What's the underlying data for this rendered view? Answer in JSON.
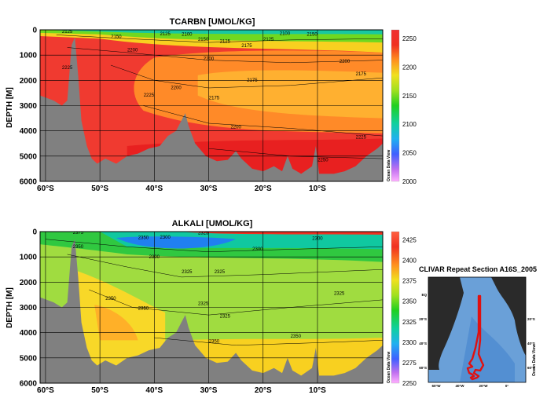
{
  "chart_data": [
    {
      "type": "heatmap",
      "title": "TCARBN [UMOL/KG]",
      "ylabel": "DEPTH [M]",
      "xlabel": "",
      "x_ticks": [
        "60°S",
        "50°S",
        "40°S",
        "30°S",
        "20°S",
        "10°S"
      ],
      "x_tick_values": [
        -60,
        -50,
        -40,
        -30,
        -20,
        -10
      ],
      "xlim": [
        -61,
        2
      ],
      "y_ticks": [
        "0",
        "1000",
        "2000",
        "3000",
        "4000",
        "5000",
        "6000"
      ],
      "y_tick_values": [
        0,
        1000,
        2000,
        3000,
        4000,
        5000,
        6000
      ],
      "ylim": [
        0,
        6000
      ],
      "colorbar_ticks": [
        "2000",
        "2050",
        "2100",
        "2150",
        "2200",
        "2250"
      ],
      "colorbar_values": [
        2000,
        2050,
        2100,
        2150,
        2200,
        2250
      ],
      "colorbar_range": [
        2000,
        2265
      ],
      "colorbar_label": "Ocean Data View",
      "grid": true,
      "contour_labels": [
        {
          "text": "2125",
          "lat": -56,
          "depth": 120
        },
        {
          "text": "2150",
          "lat": -47,
          "depth": 330
        },
        {
          "text": "2200",
          "lat": -44,
          "depth": 850
        },
        {
          "text": "2225",
          "lat": -56,
          "depth": 1550
        },
        {
          "text": "2225",
          "lat": -41,
          "depth": 2650
        },
        {
          "text": "2200",
          "lat": -36,
          "depth": 2350
        },
        {
          "text": "2175",
          "lat": -29,
          "depth": 2750
        },
        {
          "text": "2175",
          "lat": -22,
          "depth": 2050
        },
        {
          "text": "2200",
          "lat": -30,
          "depth": 1200
        },
        {
          "text": "2125",
          "lat": -38,
          "depth": 220
        },
        {
          "text": "2100",
          "lat": -34,
          "depth": 230
        },
        {
          "text": "2150",
          "lat": -31,
          "depth": 430
        },
        {
          "text": "2125",
          "lat": -27,
          "depth": 520
        },
        {
          "text": "2175",
          "lat": -23,
          "depth": 680
        },
        {
          "text": "2200",
          "lat": -5,
          "depth": 1300
        },
        {
          "text": "2175",
          "lat": -2,
          "depth": 1800
        },
        {
          "text": "2200",
          "lat": -25,
          "depth": 3900
        },
        {
          "text": "2225",
          "lat": -2,
          "depth": 4300
        },
        {
          "text": "2250",
          "lat": -9,
          "depth": 5200
        },
        {
          "text": "2100",
          "lat": -16,
          "depth": 200
        },
        {
          "text": "2125",
          "lat": -19,
          "depth": 430
        },
        {
          "text": "2150",
          "lat": -11,
          "depth": 230
        }
      ]
    },
    {
      "type": "heatmap",
      "title": "ALKALI [UMOL/KG]",
      "ylabel": "DEPTH [M]",
      "xlabel": "",
      "x_ticks": [
        "60°S",
        "50°S",
        "40°S",
        "30°S",
        "20°S",
        "10°S"
      ],
      "x_tick_values": [
        -60,
        -50,
        -40,
        -30,
        -20,
        -10
      ],
      "xlim": [
        -61,
        2
      ],
      "y_ticks": [
        "0",
        "1000",
        "2000",
        "3000",
        "4000",
        "5000",
        "6000"
      ],
      "y_tick_values": [
        0,
        1000,
        2000,
        3000,
        4000,
        5000,
        6000
      ],
      "ylim": [
        0,
        6000
      ],
      "colorbar_ticks": [
        "2250",
        "2275",
        "2300",
        "2325",
        "2350",
        "2375",
        "2400",
        "2425"
      ],
      "colorbar_values": [
        2250,
        2275,
        2300,
        2325,
        2350,
        2375,
        2400,
        2425
      ],
      "colorbar_range": [
        2250,
        2435
      ],
      "colorbar_label": "Ocean Data View",
      "grid": true,
      "contour_labels": [
        {
          "text": "2375",
          "lat": -54,
          "depth": 100
        },
        {
          "text": "2350",
          "lat": -54,
          "depth": 650
        },
        {
          "text": "2300",
          "lat": -38,
          "depth": 280
        },
        {
          "text": "2325",
          "lat": -31,
          "depth": 110
        },
        {
          "text": "2300",
          "lat": -40,
          "depth": 1050
        },
        {
          "text": "2325",
          "lat": -34,
          "depth": 1650
        },
        {
          "text": "2300",
          "lat": -21,
          "depth": 750
        },
        {
          "text": "2325",
          "lat": -28,
          "depth": 1650
        },
        {
          "text": "2325",
          "lat": -31,
          "depth": 2900
        },
        {
          "text": "2325",
          "lat": -27,
          "depth": 3400
        },
        {
          "text": "2350",
          "lat": -48,
          "depth": 2700
        },
        {
          "text": "2350",
          "lat": -42,
          "depth": 3100
        },
        {
          "text": "2350",
          "lat": -29,
          "depth": 4400
        },
        {
          "text": "2350",
          "lat": -14,
          "depth": 4200
        },
        {
          "text": "2325",
          "lat": -6,
          "depth": 2500
        },
        {
          "text": "2300",
          "lat": -10,
          "depth": 320
        },
        {
          "text": "2350",
          "lat": -42,
          "depth": 300
        }
      ]
    }
  ],
  "map": {
    "title": "CLIVAR Repeat Section A16S_2005",
    "lon_ticks": [
      "60°W",
      "40°W",
      "20°W",
      "0°"
    ],
    "lat_ticks": [
      "EQ",
      "20°S",
      "40°S",
      "60°S"
    ],
    "lat_ticks_right": [
      "20°S",
      "40°S",
      "60°S"
    ],
    "side_label": "Ocean Data View",
    "colors": {
      "track": "#e01010",
      "land": "#2a2a2a",
      "ocean": "#6aa0d8"
    }
  },
  "colors": {
    "bathymetry": "#808080",
    "grid": "#000000"
  }
}
